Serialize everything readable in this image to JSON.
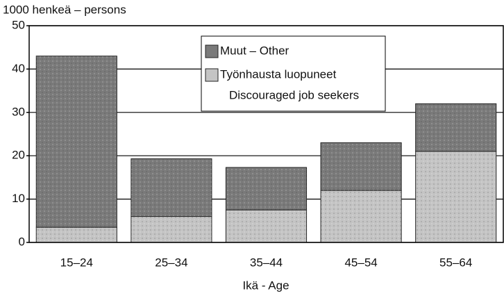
{
  "chart_data": {
    "type": "stacked-bar",
    "y_axis_label": "1000 henkeä – persons",
    "x_axis_label": "Ikä - Age",
    "categories": [
      "15–24",
      "25–34",
      "35–44",
      "45–54",
      "55–64"
    ],
    "series": [
      {
        "name": [
          "Työnhausta luopuneet",
          "Discouraged job seekers"
        ],
        "color": "#c4c4c4",
        "values": [
          3.5,
          6,
          7.5,
          12,
          21
        ]
      },
      {
        "name": "Muut – Other",
        "color": "#7a7a7a",
        "values": [
          39.5,
          13.3,
          9.8,
          11,
          11
        ]
      }
    ],
    "ylim": [
      0,
      50
    ],
    "yticks": [
      0,
      10,
      20,
      30,
      40,
      50
    ],
    "grid": true
  }
}
